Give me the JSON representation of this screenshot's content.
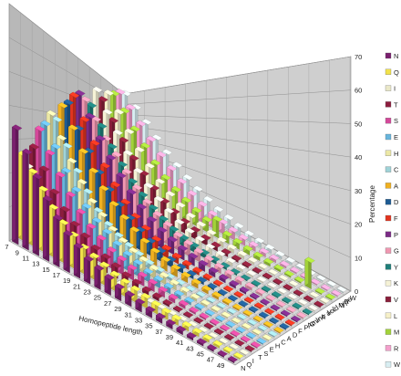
{
  "chart_data": {
    "type": "bar",
    "subtype": "3d-bar",
    "xlabel": "Homopeptide length",
    "ylabel": "Amino acid type",
    "zlabel": "Percentage",
    "zlim": [
      0,
      70
    ],
    "z_ticks": [
      "0",
      "10",
      "20",
      "30",
      "40",
      "50",
      "60",
      "70"
    ],
    "x_ticks": [
      "7",
      "9",
      "11",
      "13",
      "15",
      "17",
      "19",
      "21",
      "23",
      "25",
      "27",
      "29",
      "31",
      "33",
      "35",
      "37",
      "39",
      "41",
      "43",
      "45",
      "47",
      "49"
    ],
    "y_ticks": [
      "N",
      "Q",
      "I",
      "T",
      "S",
      "E",
      "H",
      "C",
      "A",
      "D",
      "F",
      "P",
      "G",
      "Y",
      "K",
      "V",
      "L",
      "M",
      "R",
      "W"
    ],
    "grid": true,
    "legend_position": "right",
    "series": [
      {
        "name": "N",
        "color": "#7a1f6e",
        "values": [
          34,
          28,
          22,
          17,
          13,
          10,
          8,
          6,
          5,
          4,
          3,
          2.5,
          2,
          1.5,
          1.2,
          1,
          0.8,
          0.6,
          0.5,
          0.4,
          0.3,
          0.3
        ]
      },
      {
        "name": "Q",
        "color": "#f2e24a",
        "values": [
          26,
          22,
          18,
          14,
          11,
          9,
          7,
          6,
          5,
          4,
          3.5,
          3,
          2.5,
          2,
          1.6,
          1.3,
          1,
          0.8,
          0.6,
          0.5,
          0.4,
          0.3
        ]
      },
      {
        "name": "I",
        "color": "#eae8c8",
        "values": [
          22,
          16,
          11,
          7,
          5,
          3,
          2,
          1.2,
          0.8,
          0.5,
          0.3,
          0.2,
          0.1,
          0,
          0,
          0,
          0,
          0,
          0,
          0,
          0,
          0
        ]
      },
      {
        "name": "T",
        "color": "#8c1d3e",
        "values": [
          28,
          22,
          16,
          12,
          9,
          7,
          5,
          4,
          3,
          2,
          1.5,
          1,
          0.8,
          0.5,
          0.3,
          0.2,
          0,
          0,
          0,
          0,
          0,
          0
        ]
      },
      {
        "name": "S",
        "color": "#d4489a",
        "values": [
          34,
          27,
          21,
          16,
          12,
          9,
          7,
          5,
          4,
          3,
          2.5,
          2,
          1.5,
          1,
          0.8,
          0.5,
          0.4,
          0.3,
          0.2,
          0,
          0,
          0
        ]
      },
      {
        "name": "E",
        "color": "#67b5dc",
        "values": [
          36,
          29,
          22,
          17,
          13,
          10,
          8,
          6,
          4.5,
          3.5,
          2.5,
          2,
          1.5,
          1,
          0.7,
          0.5,
          0.3,
          0.2,
          0,
          0,
          0,
          0
        ]
      },
      {
        "name": "H",
        "color": "#ece8a6",
        "values": [
          40,
          32,
          25,
          19,
          14,
          11,
          8,
          6,
          4.5,
          3.5,
          2.5,
          2,
          1.5,
          1,
          0.7,
          0.5,
          0.4,
          0.3,
          0.2,
          0,
          0,
          0
        ]
      },
      {
        "name": "C",
        "color": "#9fd3d8",
        "values": [
          38,
          29,
          21,
          15,
          10,
          7,
          5,
          3.5,
          2.5,
          1.5,
          1,
          0.7,
          0.5,
          0.3,
          0.2,
          0,
          0,
          0,
          0,
          0,
          0,
          0
        ]
      },
      {
        "name": "A",
        "color": "#f0b020",
        "values": [
          44,
          36,
          28,
          22,
          17,
          13,
          10,
          7.5,
          5.5,
          4,
          3,
          2.2,
          1.6,
          1.2,
          0.9,
          0.7,
          0.5,
          0.4,
          0.3,
          0.2,
          0,
          0
        ]
      },
      {
        "name": "D",
        "color": "#1e5b93",
        "values": [
          46,
          36,
          28,
          21,
          16,
          12,
          9,
          6.5,
          4.5,
          3,
          2,
          1.4,
          1,
          0.7,
          0.5,
          0.3,
          0.2,
          0,
          0,
          0,
          0,
          0
        ]
      },
      {
        "name": "F",
        "color": "#e2341f",
        "values": [
          50,
          40,
          31,
          23,
          17,
          12,
          8.5,
          6,
          4,
          2.8,
          1.9,
          1.3,
          0.9,
          0.6,
          0.4,
          0.3,
          0,
          0,
          0,
          0,
          0,
          0
        ]
      },
      {
        "name": "P",
        "color": "#7b2b86",
        "values": [
          52,
          42,
          33,
          26,
          20,
          15,
          11,
          8,
          6,
          4.5,
          3.3,
          2.5,
          1.9,
          1.4,
          1,
          0.8,
          0.6,
          0.4,
          0.3,
          0.2,
          0,
          0
        ]
      },
      {
        "name": "G",
        "color": "#f097b1",
        "values": [
          50,
          41,
          33,
          27,
          21,
          16,
          12,
          9,
          7,
          5,
          4,
          3,
          2.3,
          1.7,
          1.3,
          1,
          0.8,
          0.6,
          0.4,
          0.3,
          0.2,
          0
        ]
      },
      {
        "name": "Y",
        "color": "#1f7f7a",
        "values": [
          48,
          38,
          29,
          22,
          16,
          12,
          8.5,
          6,
          4,
          2.8,
          2,
          1.4,
          1,
          0.7,
          0.5,
          0.3,
          0.2,
          0,
          0,
          0,
          0,
          0
        ]
      },
      {
        "name": "K",
        "color": "#f5f2d6",
        "values": [
          58,
          46,
          36,
          27,
          20,
          15,
          11,
          8,
          5.5,
          4,
          3,
          2.2,
          1.6,
          1.1,
          0.8,
          0.6,
          0.4,
          0.3,
          0.2,
          0,
          0,
          0
        ]
      },
      {
        "name": "V",
        "color": "#8a1f3a",
        "values": [
          54,
          42,
          32,
          24,
          18,
          13,
          9,
          6.5,
          4.5,
          3.2,
          2.2,
          1.5,
          1,
          0.7,
          0.5,
          0.3,
          0,
          0,
          0,
          0,
          0,
          0
        ]
      },
      {
        "name": "L",
        "color": "#f6f0c8",
        "values": [
          60,
          48,
          37,
          28,
          21,
          15,
          11,
          8,
          5.5,
          4,
          2.8,
          2,
          1.4,
          1,
          0.7,
          0.5,
          0.3,
          0,
          0,
          0,
          0,
          0
        ]
      },
      {
        "name": "M",
        "color": "#a2d23a",
        "values": [
          62,
          50,
          39,
          30,
          22,
          16,
          12,
          9,
          6.5,
          4.7,
          7,
          3,
          2.2,
          1.6,
          1.2,
          0.9,
          0.7,
          0.5,
          0.4,
          8,
          0.3,
          0
        ]
      },
      {
        "name": "R",
        "color": "#f4a0cc",
        "values": [
          66,
          54,
          43,
          34,
          26,
          20,
          15,
          11,
          8,
          6,
          4.5,
          3.3,
          2.4,
          1.8,
          1.3,
          1,
          0.7,
          0.5,
          0.4,
          0.3,
          0.2,
          0
        ]
      },
      {
        "name": "W",
        "color": "#d8eef2",
        "values": [
          68,
          56,
          45,
          35,
          27,
          21,
          16,
          12,
          9,
          6.5,
          5,
          3.6,
          2.6,
          1.9,
          1.4,
          1,
          0.7,
          0.5,
          0.3,
          0.2,
          0,
          0
        ]
      }
    ]
  }
}
